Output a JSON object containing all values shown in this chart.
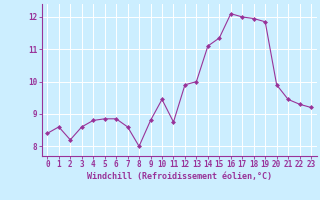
{
  "x": [
    0,
    1,
    2,
    3,
    4,
    5,
    6,
    7,
    8,
    9,
    10,
    11,
    12,
    13,
    14,
    15,
    16,
    17,
    18,
    19,
    20,
    21,
    22,
    23
  ],
  "y": [
    8.4,
    8.6,
    8.2,
    8.6,
    8.8,
    8.85,
    8.85,
    8.6,
    8.0,
    8.8,
    9.45,
    8.75,
    9.9,
    10.0,
    11.1,
    11.35,
    12.1,
    12.0,
    11.95,
    11.85,
    9.9,
    9.45,
    9.3,
    9.2
  ],
  "line_color": "#993399",
  "marker": "D",
  "marker_size": 2.0,
  "bg_color": "#cceeff",
  "grid_color": "#ffffff",
  "xlabel": "Windchill (Refroidissement éolien,°C)",
  "ylim": [
    7.7,
    12.4
  ],
  "xlim": [
    -0.5,
    23.5
  ],
  "yticks": [
    8,
    9,
    10,
    11,
    12
  ],
  "spine_color": "#993399",
  "tick_color": "#993399",
  "label_color": "#993399",
  "tick_fontsize": 5.5,
  "xlabel_fontsize": 6.0
}
